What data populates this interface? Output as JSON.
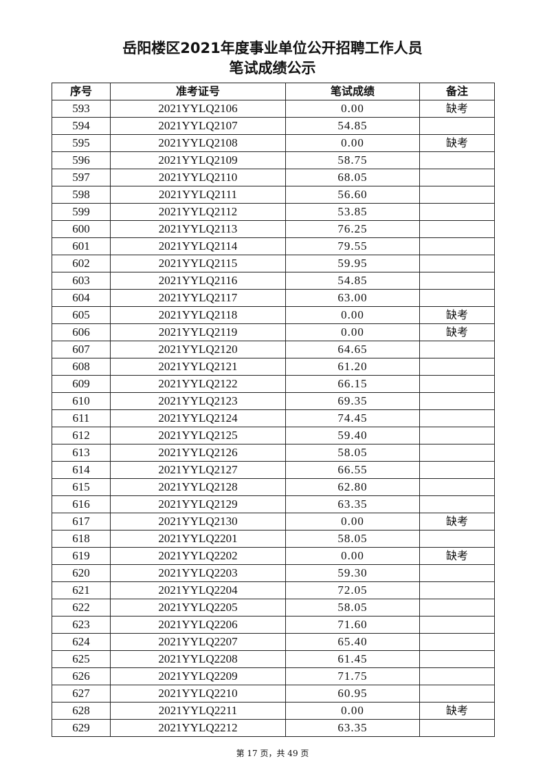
{
  "document": {
    "title_line1": "岳阳楼区2021年度事业单位公开招聘工作人员",
    "title_line2": "笔试成绩公示",
    "footer": "第 17 页，共 49 页"
  },
  "table": {
    "headers": [
      "序号",
      "准考证号",
      "笔试成绩",
      "备注"
    ],
    "rows": [
      [
        "593",
        "2021YYLQ2106",
        "0.00",
        "缺考"
      ],
      [
        "594",
        "2021YYLQ2107",
        "54.85",
        ""
      ],
      [
        "595",
        "2021YYLQ2108",
        "0.00",
        "缺考"
      ],
      [
        "596",
        "2021YYLQ2109",
        "58.75",
        ""
      ],
      [
        "597",
        "2021YYLQ2110",
        "68.05",
        ""
      ],
      [
        "598",
        "2021YYLQ2111",
        "56.60",
        ""
      ],
      [
        "599",
        "2021YYLQ2112",
        "53.85",
        ""
      ],
      [
        "600",
        "2021YYLQ2113",
        "76.25",
        ""
      ],
      [
        "601",
        "2021YYLQ2114",
        "79.55",
        ""
      ],
      [
        "602",
        "2021YYLQ2115",
        "59.95",
        ""
      ],
      [
        "603",
        "2021YYLQ2116",
        "54.85",
        ""
      ],
      [
        "604",
        "2021YYLQ2117",
        "63.00",
        ""
      ],
      [
        "605",
        "2021YYLQ2118",
        "0.00",
        "缺考"
      ],
      [
        "606",
        "2021YYLQ2119",
        "0.00",
        "缺考"
      ],
      [
        "607",
        "2021YYLQ2120",
        "64.65",
        ""
      ],
      [
        "608",
        "2021YYLQ2121",
        "61.20",
        ""
      ],
      [
        "609",
        "2021YYLQ2122",
        "66.15",
        ""
      ],
      [
        "610",
        "2021YYLQ2123",
        "69.35",
        ""
      ],
      [
        "611",
        "2021YYLQ2124",
        "74.45",
        ""
      ],
      [
        "612",
        "2021YYLQ2125",
        "59.40",
        ""
      ],
      [
        "613",
        "2021YYLQ2126",
        "58.05",
        ""
      ],
      [
        "614",
        "2021YYLQ2127",
        "66.55",
        ""
      ],
      [
        "615",
        "2021YYLQ2128",
        "62.80",
        ""
      ],
      [
        "616",
        "2021YYLQ2129",
        "63.35",
        ""
      ],
      [
        "617",
        "2021YYLQ2130",
        "0.00",
        "缺考"
      ],
      [
        "618",
        "2021YYLQ2201",
        "58.05",
        ""
      ],
      [
        "619",
        "2021YYLQ2202",
        "0.00",
        "缺考"
      ],
      [
        "620",
        "2021YYLQ2203",
        "59.30",
        ""
      ],
      [
        "621",
        "2021YYLQ2204",
        "72.05",
        ""
      ],
      [
        "622",
        "2021YYLQ2205",
        "58.05",
        ""
      ],
      [
        "623",
        "2021YYLQ2206",
        "71.60",
        ""
      ],
      [
        "624",
        "2021YYLQ2207",
        "65.40",
        ""
      ],
      [
        "625",
        "2021YYLQ2208",
        "61.45",
        ""
      ],
      [
        "626",
        "2021YYLQ2209",
        "71.75",
        ""
      ],
      [
        "627",
        "2021YYLQ2210",
        "60.95",
        ""
      ],
      [
        "628",
        "2021YYLQ2211",
        "0.00",
        "缺考"
      ],
      [
        "629",
        "2021YYLQ2212",
        "63.35",
        ""
      ]
    ]
  }
}
